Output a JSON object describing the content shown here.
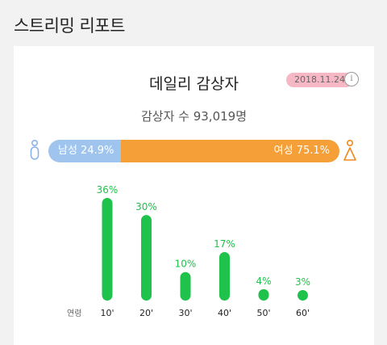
{
  "header": {
    "title": "스트리밍 리포트"
  },
  "card": {
    "title": "데일리 감상자",
    "date": "2018.11.24",
    "info_icon": "info-icon",
    "viewers_text": "감상자 수 93,019명"
  },
  "gender": {
    "male_label": "남성 24.9%",
    "female_label": "여성 75.1%",
    "male_share": 24.9,
    "female_share": 75.1,
    "male_color": "#9fc4ee",
    "female_color": "#f59f38",
    "male_icon": "male-person-icon",
    "female_icon": "female-person-icon"
  },
  "chart_data": {
    "type": "bar",
    "xlabel": "연령",
    "categories": [
      "10'",
      "20'",
      "30'",
      "40'",
      "50'",
      "60'"
    ],
    "values": [
      36,
      30,
      10,
      17,
      4,
      3
    ],
    "value_labels": [
      "36%",
      "30%",
      "10%",
      "17%",
      "4%",
      "3%"
    ],
    "color": "#1fc24a",
    "ylim": [
      0,
      36
    ]
  }
}
